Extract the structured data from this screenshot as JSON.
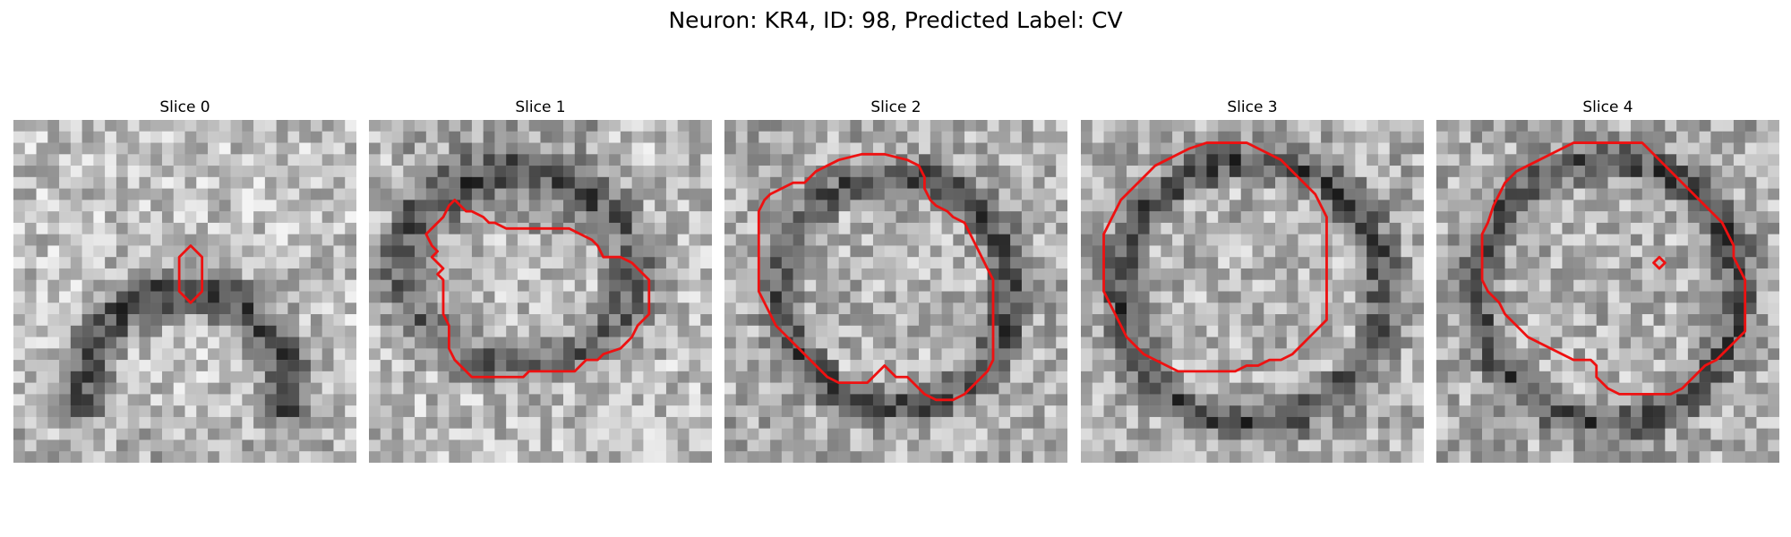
{
  "figure": {
    "title": "Neuron: KR4, ID: 98, Predicted Label: CV"
  },
  "colors": {
    "contour": "#ee1111",
    "background": "#ffffff"
  },
  "panels": [
    {
      "label": "Slice 0",
      "seed": 11,
      "pattern": "blob-top",
      "contour": [
        [
          19.5,
          13
        ],
        [
          20.5,
          12
        ],
        [
          21.5,
          13
        ],
        [
          21.5,
          16
        ],
        [
          20.5,
          17
        ],
        [
          19.5,
          16
        ]
      ],
      "extra": []
    },
    {
      "label": "Slice 1",
      "seed": 23,
      "pattern": "ring-small",
      "contour": [
        [
          8.5,
          7
        ],
        [
          9.5,
          7.5
        ],
        [
          10,
          7.5
        ],
        [
          15,
          7.5
        ],
        [
          16,
          8
        ],
        [
          17,
          8.5
        ],
        [
          17.5,
          9
        ],
        [
          18,
          10
        ],
        [
          19.5,
          10
        ],
        [
          20.5,
          10.5
        ],
        [
          21,
          11
        ],
        [
          21.5,
          11.5
        ],
        [
          22,
          12
        ],
        [
          22,
          15
        ],
        [
          21,
          16
        ],
        [
          20.5,
          17
        ],
        [
          19.5,
          18
        ],
        [
          18,
          18.5
        ],
        [
          17.5,
          19
        ],
        [
          16.5,
          19
        ],
        [
          15.5,
          20
        ],
        [
          11.5,
          20
        ],
        [
          11,
          20.5
        ],
        [
          6.5,
          20.5
        ],
        [
          6,
          20
        ],
        [
          5.5,
          19.5
        ],
        [
          5,
          19
        ],
        [
          4.5,
          18
        ],
        [
          4.5,
          16
        ],
        [
          4,
          15
        ],
        [
          4,
          12
        ],
        [
          3.5,
          11.5
        ],
        [
          4,
          11
        ],
        [
          3.5,
          10.5
        ],
        [
          3,
          10
        ],
        [
          3.5,
          9.5
        ],
        [
          3,
          9
        ],
        [
          2.5,
          8
        ],
        [
          3,
          7.5
        ],
        [
          4,
          6.5
        ],
        [
          4.5,
          5.5
        ],
        [
          5,
          5
        ],
        [
          5.5,
          5.5
        ],
        [
          6,
          6
        ],
        [
          6.5,
          6
        ],
        [
          7.5,
          6.5
        ],
        [
          8,
          7
        ]
      ],
      "extra": []
    },
    {
      "label": "Slice 2",
      "seed": 37,
      "pattern": "ring-mid",
      "contour": [
        [
          6,
          3.5
        ],
        [
          7,
          2.5
        ],
        [
          8,
          2
        ],
        [
          9,
          1.5
        ],
        [
          11,
          1
        ],
        [
          13,
          1
        ],
        [
          15,
          1.5
        ],
        [
          16,
          2
        ],
        [
          16.5,
          3
        ],
        [
          16.5,
          4
        ],
        [
          17,
          5
        ],
        [
          17.5,
          5.5
        ],
        [
          18.5,
          6
        ],
        [
          19,
          6.5
        ],
        [
          20,
          7
        ],
        [
          20.5,
          8
        ],
        [
          21,
          9
        ],
        [
          21.5,
          10
        ],
        [
          22,
          11
        ],
        [
          22.5,
          12
        ],
        [
          22.5,
          14
        ],
        [
          22.5,
          15.5
        ],
        [
          22.5,
          17.5
        ],
        [
          22.5,
          19
        ],
        [
          22,
          20
        ],
        [
          21.5,
          20.5
        ],
        [
          21,
          21
        ],
        [
          20.5,
          21.5
        ],
        [
          20,
          22
        ],
        [
          19,
          22.5
        ],
        [
          18,
          22.5
        ],
        [
          17.5,
          22.5
        ],
        [
          16.5,
          22
        ],
        [
          16,
          21.5
        ],
        [
          15.5,
          21
        ],
        [
          15,
          20.5
        ],
        [
          14,
          20.5
        ],
        [
          13.5,
          20
        ],
        [
          13,
          19.5
        ],
        [
          12.5,
          20
        ],
        [
          12,
          20.5
        ],
        [
          11.5,
          21
        ],
        [
          10,
          21
        ],
        [
          9,
          21
        ],
        [
          8,
          20.5
        ],
        [
          7,
          19.5
        ],
        [
          6,
          18.5
        ],
        [
          5,
          17.5
        ],
        [
          4,
          16.5
        ],
        [
          3.5,
          16
        ],
        [
          3,
          15
        ],
        [
          2.5,
          14
        ],
        [
          2,
          13
        ],
        [
          2,
          12
        ],
        [
          2,
          10
        ],
        [
          2,
          8
        ],
        [
          2,
          6
        ],
        [
          2.5,
          5
        ],
        [
          3,
          4.5
        ],
        [
          4,
          4
        ],
        [
          5,
          3.5
        ]
      ],
      "extra": []
    },
    {
      "label": "Slice 3",
      "seed": 51,
      "pattern": "ring-large",
      "contour": [
        [
          6,
          2
        ],
        [
          7,
          1.5
        ],
        [
          8,
          1
        ],
        [
          9,
          0.5
        ],
        [
          10.5,
          0
        ],
        [
          12,
          0
        ],
        [
          14,
          0
        ],
        [
          15,
          0.5
        ],
        [
          16,
          1
        ],
        [
          17,
          1.5
        ],
        [
          18,
          2.5
        ],
        [
          19,
          3.5
        ],
        [
          20,
          4.5
        ],
        [
          20.5,
          5.5
        ],
        [
          21,
          6.5
        ],
        [
          21,
          8
        ],
        [
          21,
          10
        ],
        [
          21,
          12
        ],
        [
          21,
          14
        ],
        [
          21,
          15.5
        ],
        [
          20.5,
          16
        ],
        [
          20,
          16.5
        ],
        [
          19.5,
          17
        ],
        [
          19,
          17.5
        ],
        [
          18.5,
          18
        ],
        [
          18,
          18.5
        ],
        [
          17,
          19
        ],
        [
          16,
          19
        ],
        [
          15,
          19.5
        ],
        [
          14,
          19.5
        ],
        [
          13,
          20
        ],
        [
          11,
          20
        ],
        [
          9,
          20
        ],
        [
          8,
          20
        ],
        [
          7,
          19.5
        ],
        [
          6,
          19
        ],
        [
          5,
          18.5
        ],
        [
          4,
          17.5
        ],
        [
          3.5,
          17
        ],
        [
          3,
          16
        ],
        [
          2.5,
          15
        ],
        [
          2,
          14
        ],
        [
          1.5,
          13
        ],
        [
          1.5,
          12
        ],
        [
          1.5,
          11
        ],
        [
          1.5,
          9.5
        ],
        [
          1.5,
          8
        ],
        [
          2,
          7
        ],
        [
          2.5,
          6
        ],
        [
          3,
          5
        ],
        [
          3.5,
          4.5
        ],
        [
          4,
          4
        ],
        [
          4.5,
          3.5
        ],
        [
          5,
          3
        ],
        [
          5.5,
          2.5
        ]
      ],
      "extra": []
    },
    {
      "label": "Slice 4",
      "seed": 67,
      "pattern": "ring-large",
      "contour": [
        [
          5,
          3.5
        ],
        [
          6,
          2.5
        ],
        [
          7,
          2
        ],
        [
          8,
          1.5
        ],
        [
          9,
          1
        ],
        [
          10,
          0.5
        ],
        [
          11,
          0
        ],
        [
          14,
          0
        ],
        [
          17,
          0
        ],
        [
          18,
          1
        ],
        [
          19,
          2
        ],
        [
          20,
          3
        ],
        [
          21,
          4
        ],
        [
          22,
          5
        ],
        [
          23,
          6
        ],
        [
          24,
          7
        ],
        [
          24.5,
          8
        ],
        [
          25,
          9
        ],
        [
          25,
          10
        ],
        [
          25.5,
          11
        ],
        [
          26,
          12
        ],
        [
          26,
          13.5
        ],
        [
          26,
          15
        ],
        [
          26,
          16.5
        ],
        [
          25.5,
          17
        ],
        [
          25,
          17.5
        ],
        [
          24.5,
          18
        ],
        [
          24,
          18.5
        ],
        [
          23.5,
          19
        ],
        [
          22.5,
          19.5
        ],
        [
          22,
          20
        ],
        [
          21.5,
          20.5
        ],
        [
          21,
          21
        ],
        [
          20.5,
          21.5
        ],
        [
          19.5,
          22
        ],
        [
          18.5,
          22
        ],
        [
          17,
          22
        ],
        [
          15,
          22
        ],
        [
          14,
          21.5
        ],
        [
          13.5,
          21
        ],
        [
          13,
          20.5
        ],
        [
          13,
          19.5
        ],
        [
          12.5,
          19
        ],
        [
          11,
          19
        ],
        [
          10,
          18.5
        ],
        [
          9,
          18
        ],
        [
          8,
          17.5
        ],
        [
          7,
          17
        ],
        [
          6,
          16
        ],
        [
          5.5,
          15.5
        ],
        [
          5,
          15
        ],
        [
          4.5,
          14
        ],
        [
          4,
          13.5
        ],
        [
          3.5,
          13
        ],
        [
          3,
          12
        ],
        [
          3,
          10
        ],
        [
          3,
          8
        ],
        [
          3.5,
          7
        ],
        [
          4,
          5.5
        ],
        [
          4.5,
          4.5
        ]
      ],
      "extra": [
        [
          18,
          10.5
        ],
        [
          18.5,
          10
        ],
        [
          19,
          10.5
        ],
        [
          18.5,
          11
        ]
      ]
    }
  ]
}
